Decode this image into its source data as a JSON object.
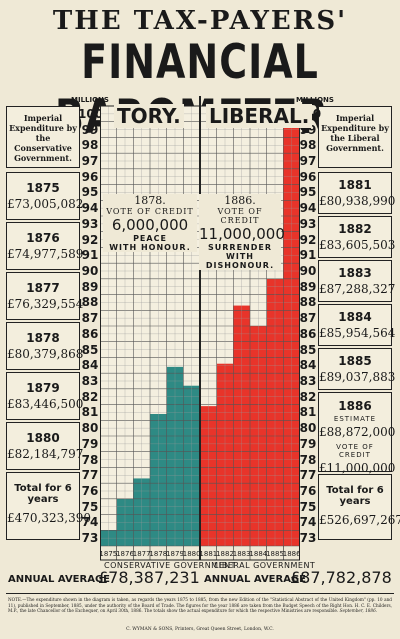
{
  "title_line1": "THE TAX-PAYERS'",
  "title_line2": "FINANCIAL BAROMETER.",
  "units_label": "MILLIONS",
  "tory": {
    "heading": "TORY.",
    "panel_title": "Imperial Expenditure by the Conservative Government.",
    "years": [
      {
        "year": "1875",
        "amount": "£73,005,082"
      },
      {
        "year": "1876",
        "amount": "£74,977,589"
      },
      {
        "year": "1877",
        "amount": "£76,329,554"
      },
      {
        "year": "1878",
        "amount": "£80,379,868"
      },
      {
        "year": "1879",
        "amount": "£83,446,500"
      },
      {
        "year": "1880",
        "amount": "£82,184,797"
      }
    ],
    "total_label": "Total for 6 years",
    "total_amount": "£470,323,390",
    "info_year": "1878.",
    "info_vote": "VOTE OF CREDIT",
    "info_value": "6,000,000",
    "info_slogan_1": "PEACE",
    "info_slogan_2": "WITH HONOUR.",
    "gov_label": "CONSERVATIVE GOVERNMENT",
    "avg_label": "ANNUAL AVERAGE",
    "avg_value": "£78,387,231"
  },
  "liberal": {
    "heading": "LIBERAL.",
    "panel_title": "Imperial Expenditure by the Liberal Government.",
    "years": [
      {
        "year": "1881",
        "amount": "£80,938,990"
      },
      {
        "year": "1882",
        "amount": "£83,605,503"
      },
      {
        "year": "1883",
        "amount": "£87,288,327"
      },
      {
        "year": "1884",
        "amount": "£85,954,564"
      },
      {
        "year": "1885",
        "amount": "£89,037,883"
      }
    ],
    "year_1886": "1886",
    "estimate_label": "ESTIMATE",
    "amount_1886": "£88,872,000",
    "vote_label": "VOTE OF CREDIT",
    "vote_amount": "£11,000,000",
    "total_label": "Total for 6 years",
    "total_amount": "£526,697,267",
    "info_year": "1886.",
    "info_vote": "VOTE OF CREDIT",
    "info_value": "11,000,000",
    "info_slogan_1": "SURRENDER",
    "info_slogan_2": "WITH DISHONOUR.",
    "gov_label": "LIBERAL GOVERNMENT",
    "avg_label": "ANNUAL AVERAGE",
    "avg_value": "£87,782,878"
  },
  "note": "NOTE.—The expenditure shown in the diagram is taken, as regards the years 1875 to 1885, from the new Edition of the \"Statistical Abstract of the United Kingdom\" (pp. 10 and 11), published in September, 1885, under the authority of the Board of Trade. The figures for the year 1886 are taken from the Budget Speech of the Right Hon. H. C. E. Childers, M.P., the late Chancellor of the Exchequer, on April 30th, 1886. The totals show the actual expenditure for which the respective Ministries are responsible.",
  "note_date": "September, 1886.",
  "printer": "C. WYMAN & SONS, Printers, Great Queen Street, London, W.C.",
  "colors": {
    "tory": "#2e8a84",
    "liberal": "#e8342a",
    "paper": "#efe9d6",
    "ink": "#1a1a1a"
  },
  "chart_data": {
    "type": "bar",
    "ylim": [
      73,
      100
    ],
    "yticks": [
      "73",
      "74",
      "75",
      "76",
      "77",
      "78",
      "79",
      "80",
      "81",
      "82",
      "83",
      "84",
      "85",
      "86",
      "87",
      "88",
      "89",
      "90",
      "91",
      "92",
      "93",
      "94",
      "95",
      "96",
      "97",
      "98",
      "99",
      "100"
    ],
    "categories": [
      "1875",
      "1876",
      "1877",
      "1878",
      "1879",
      "1880",
      "1881",
      "1882",
      "1883",
      "1884",
      "1885",
      "1886"
    ],
    "series": [
      {
        "name": "TORY.",
        "color": "#2e8a84",
        "values": [
          73.0,
          75.0,
          76.3,
          80.4,
          83.4,
          82.2,
          null,
          null,
          null,
          null,
          null,
          null
        ]
      },
      {
        "name": "LIBERAL.",
        "color": "#e8342a",
        "values": [
          null,
          null,
          null,
          null,
          null,
          null,
          80.9,
          83.6,
          87.3,
          86.0,
          89.0,
          99.9
        ]
      }
    ]
  }
}
